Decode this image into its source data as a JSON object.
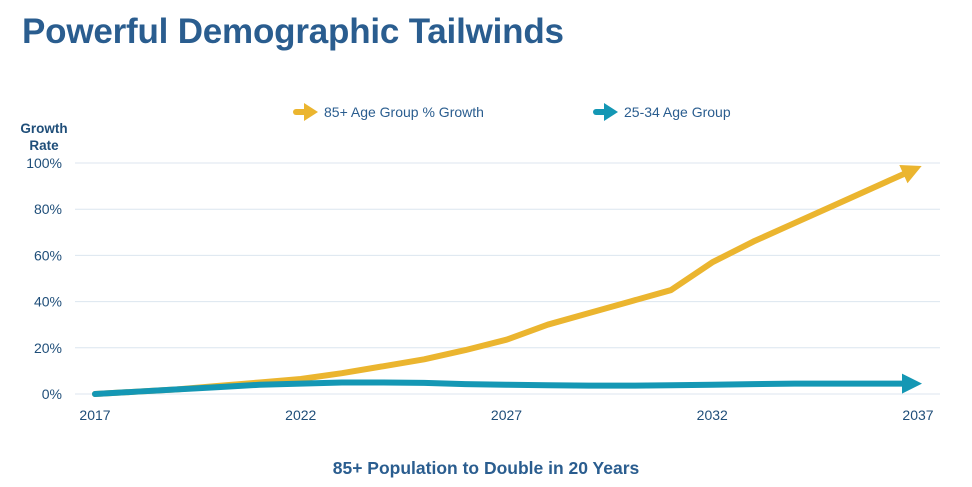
{
  "page": {
    "title": "Powerful Demographic Tailwinds"
  },
  "chart_data": {
    "type": "line",
    "title": "",
    "ylabel": "Growth Rate",
    "xlabel": "",
    "footer": "85+ Population to Double in 20 Years",
    "x": [
      2017,
      2018,
      2019,
      2020,
      2021,
      2022,
      2023,
      2024,
      2025,
      2026,
      2027,
      2028,
      2029,
      2030,
      2031,
      2032,
      2033,
      2034,
      2035,
      2036,
      2037
    ],
    "xticks": [
      "2017",
      "2022",
      "2027",
      "2032",
      "2037"
    ],
    "yticks": [
      "0%",
      "20%",
      "40%",
      "60%",
      "80%",
      "100%"
    ],
    "ylim": [
      0,
      100
    ],
    "grid": true,
    "legend_position": "top",
    "series": [
      {
        "name": "85+ Age Group % Growth",
        "color": "#ebb52f",
        "values": [
          0,
          1,
          2,
          3.5,
          5,
          6.5,
          9,
          12,
          15,
          19,
          23.5,
          30,
          35,
          40,
          45,
          57,
          66,
          74,
          82,
          90,
          98
        ]
      },
      {
        "name": "25-34 Age Group",
        "color": "#1497b4",
        "values": [
          0,
          1,
          2,
          3,
          4,
          4.5,
          5,
          5,
          4.8,
          4.3,
          4,
          3.8,
          3.6,
          3.6,
          3.8,
          4,
          4.3,
          4.5,
          4.5,
          4.5,
          4.5
        ]
      }
    ]
  }
}
